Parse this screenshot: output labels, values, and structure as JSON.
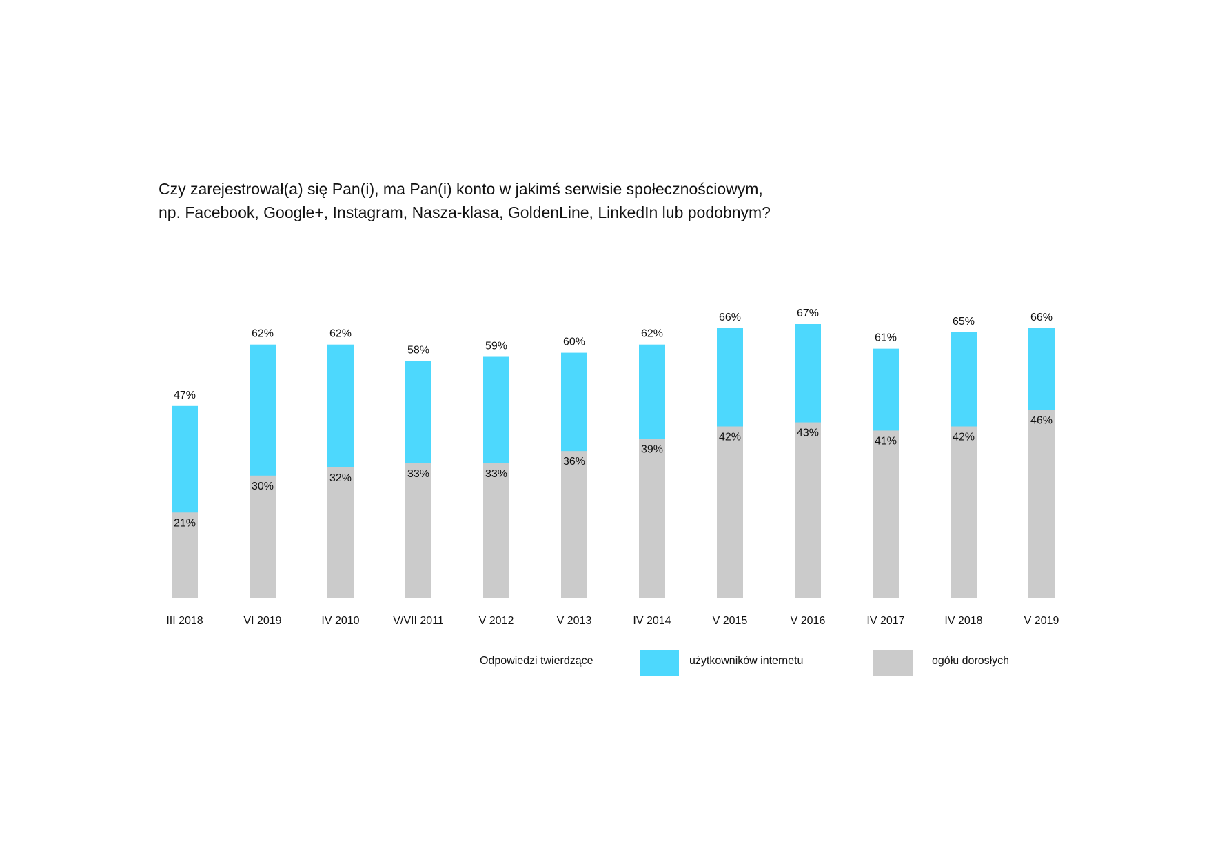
{
  "colors": {
    "internet_users": "#4dd8fd",
    "all_adults": "#cbcbcb"
  },
  "chart_data": {
    "type": "bar",
    "title_lines": [
      "Czy zarejestrował(a) się Pan(i), ma Pan(i) konto w jakimś serwisie społecznościowym,",
      "np.  Facebook, Google+, Instagram, Nasza-klasa, GoldenLine, LinkedIn lub podobnym?"
    ],
    "categories": [
      "III 2018",
      "VI 2019",
      "IV 2010",
      "V/VII 2011",
      "V 2012",
      "V 2013",
      "IV 2014",
      "V 2015",
      "V 2016",
      "IV 2017",
      "IV 2018",
      "V 2019"
    ],
    "series": [
      {
        "name": "użytkowników internetu",
        "color": "#4dd8fd",
        "values": [
          47,
          62,
          62,
          58,
          59,
          60,
          62,
          66,
          67,
          61,
          65,
          66
        ],
        "labels": [
          "47%",
          "62%",
          "62%",
          "58%",
          "59%",
          "60%",
          "62%",
          "66%",
          "67%",
          "61%",
          "65%",
          "66%"
        ]
      },
      {
        "name": "ogółu dorosłych",
        "color": "#cbcbcb",
        "values": [
          21,
          30,
          32,
          33,
          33,
          36,
          39,
          42,
          43,
          41,
          42,
          46
        ],
        "labels": [
          "21%",
          "30%",
          "32%",
          "33%",
          "33%",
          "36%",
          "39%",
          "42%",
          "43%",
          "41%",
          "42%",
          "46%"
        ]
      }
    ],
    "ylim": [
      0,
      67
    ],
    "grid": false,
    "legend": {
      "title": "Odpowiedzi twierdzące",
      "items": [
        "użytkowników internetu",
        "ogółu dorosłych"
      ],
      "placement": "bottom"
    }
  }
}
